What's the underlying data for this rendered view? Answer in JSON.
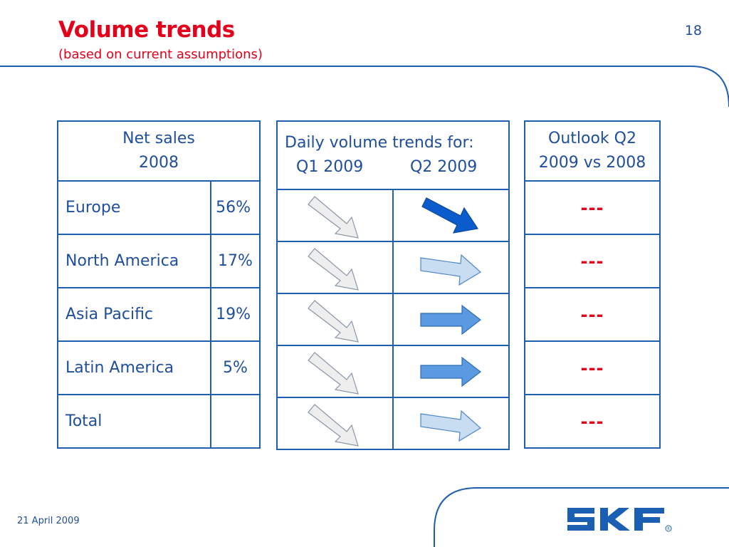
{
  "slide": {
    "title": "Volume trends",
    "subtitle": "(based on current assumptions)",
    "page_number": "18",
    "footer_date": "21 April 2009",
    "logo_text": "SKF",
    "colors": {
      "red": "#e3001b",
      "blue": "#1f4e9c"
    }
  },
  "net_sales": {
    "header_line1": "Net sales",
    "header_line2": "2008",
    "rows": [
      {
        "region": "Europe",
        "value": "56%"
      },
      {
        "region": "North America",
        "value": "17%"
      },
      {
        "region": "Asia Pacific",
        "value": "19%"
      },
      {
        "region": "Latin America",
        "value": "5%"
      },
      {
        "region": "Total",
        "value": ""
      }
    ]
  },
  "daily_trends": {
    "header_line1": "Daily volume trends for:",
    "col_q1": "Q1 2009",
    "col_q2": "Q2 2009",
    "rows": [
      {
        "q1": "arrow-down-right-light-gray-icon",
        "q2": "arrow-down-right-dark-blue-icon"
      },
      {
        "q1": "arrow-down-right-light-gray-icon",
        "q2": "arrow-right-light-blue-icon"
      },
      {
        "q1": "arrow-down-right-light-gray-icon",
        "q2": "arrow-right-medium-blue-icon"
      },
      {
        "q1": "arrow-down-right-light-gray-icon",
        "q2": "arrow-right-medium-blue-icon"
      },
      {
        "q1": "arrow-down-right-light-gray-icon",
        "q2": "arrow-right-light-blue-icon"
      }
    ]
  },
  "outlook": {
    "header_line1": "Outlook Q2",
    "header_line2": "2009 vs 2008",
    "rows": [
      "---",
      "---",
      "---",
      "---",
      "---"
    ]
  }
}
